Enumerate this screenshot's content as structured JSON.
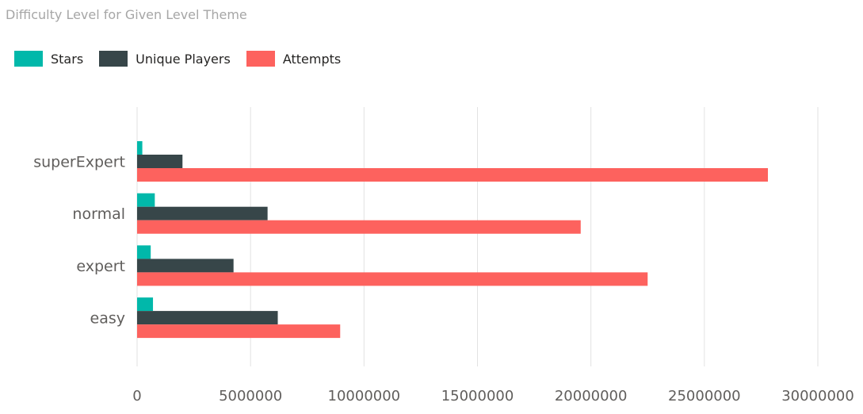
{
  "chart_data": {
    "type": "bar",
    "orientation": "horizontal",
    "title": "Difficulty Level for Given Level Theme",
    "categories": [
      "superExpert",
      "normal",
      "expert",
      "easy"
    ],
    "series": [
      {
        "name": "Stars",
        "color": "#01b8aa",
        "values": [
          230000,
          780000,
          600000,
          700000
        ]
      },
      {
        "name": "Unique Players",
        "color": "#374649",
        "values": [
          2000000,
          5750000,
          4250000,
          6200000
        ]
      },
      {
        "name": "Attempts",
        "color": "#fd625e",
        "values": [
          27800000,
          19550000,
          22500000,
          8950000
        ]
      }
    ],
    "x_ticks": [
      "0",
      "5000000",
      "10000000",
      "15000000",
      "20000000",
      "25000000",
      "30000000"
    ],
    "xlim": [
      0,
      30000000
    ],
    "grid": true,
    "legend_position": "top-left"
  }
}
